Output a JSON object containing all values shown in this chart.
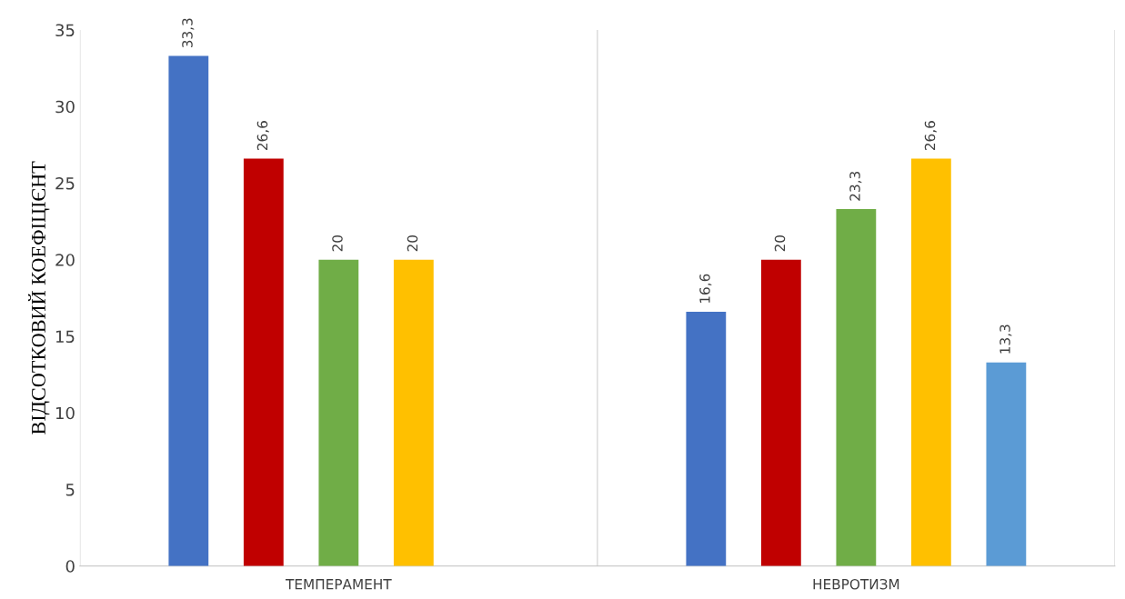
{
  "chart_data": {
    "type": "bar",
    "ylabel": "ВІДСОТКОВИЙ КОЕФІЦІЄНТ",
    "categories": [
      "ТЕМПЕРАМЕНТ",
      "НЕВРОТИЗМ"
    ],
    "series": [
      {
        "color": "#4472c4",
        "values": [
          33.3,
          16.6
        ],
        "value_labels": [
          "33,3",
          "16,6"
        ]
      },
      {
        "color": "#c00000",
        "values": [
          26.6,
          20
        ],
        "value_labels": [
          "26,6",
          "20"
        ]
      },
      {
        "color": "#70ad47",
        "values": [
          20,
          23.3
        ],
        "value_labels": [
          "20",
          "23,3"
        ]
      },
      {
        "color": "#ffc000",
        "values": [
          20,
          26.6
        ],
        "value_labels": [
          "20",
          "26,6"
        ]
      },
      {
        "color": "#5b9bd5",
        "values": [
          null,
          13.3
        ],
        "value_labels": [
          null,
          "13,3"
        ]
      }
    ],
    "ylim": [
      0,
      35
    ],
    "yticks": [
      0,
      5,
      10,
      15,
      20,
      25,
      30,
      35
    ],
    "grid": "x",
    "legend": false
  }
}
